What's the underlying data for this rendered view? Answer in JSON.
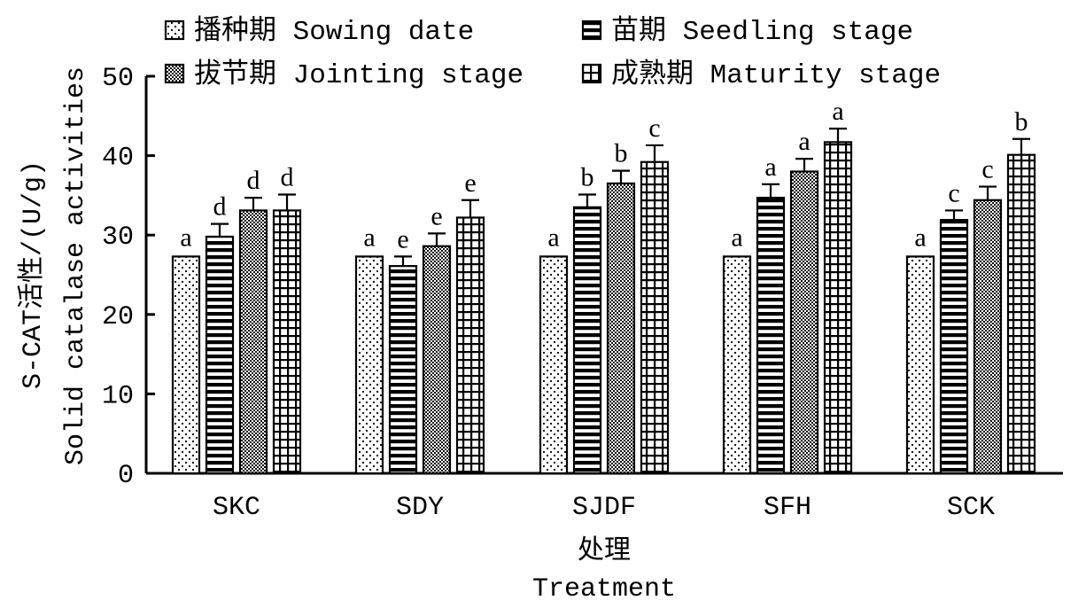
{
  "chart_data": {
    "type": "bar",
    "categories": [
      "SKC",
      "SDY",
      "SJDF",
      "SFH",
      "SCK"
    ],
    "series": [
      {
        "name": "播种期 Sowing date",
        "pattern": "dots",
        "values": [
          27.3,
          27.3,
          27.3,
          27.3,
          27.3
        ],
        "errors": [
          0,
          0,
          0,
          0,
          0
        ],
        "labels": [
          "a",
          "a",
          "a",
          "a",
          "a"
        ]
      },
      {
        "name": "苗期 Seedling stage",
        "pattern": "horizontal-lines",
        "values": [
          29.8,
          26.1,
          33.5,
          34.7,
          31.9
        ],
        "errors": [
          1.6,
          1.2,
          1.6,
          1.7,
          1.2
        ],
        "labels": [
          "d",
          "e",
          "b",
          "a",
          "c"
        ]
      },
      {
        "name": "拔节期 Jointing stage",
        "pattern": "crosshatch",
        "values": [
          33.1,
          28.6,
          36.5,
          38.0,
          34.4
        ],
        "errors": [
          1.6,
          1.6,
          1.6,
          1.6,
          1.7
        ],
        "labels": [
          "d",
          "e",
          "b",
          "a",
          "c"
        ]
      },
      {
        "name": "成熟期 Maturity stage",
        "pattern": "grid",
        "values": [
          33.1,
          32.2,
          39.2,
          41.7,
          40.1
        ],
        "errors": [
          2.0,
          2.2,
          2.1,
          1.7,
          2.0
        ],
        "labels": [
          "d",
          "e",
          "c",
          "a",
          "b"
        ]
      }
    ],
    "ylim": [
      0,
      50
    ],
    "yticks": [
      0,
      10,
      20,
      30,
      40,
      50
    ],
    "ylabel_line1": "S-CAT活性/(U/g)",
    "ylabel_line2": "Solid catalase activities",
    "xlabel_line1": "处理",
    "xlabel_line2": "Treatment",
    "legend_position": "top",
    "colors": {
      "bar_fill": "#ffffff",
      "stroke": "#000000"
    }
  }
}
